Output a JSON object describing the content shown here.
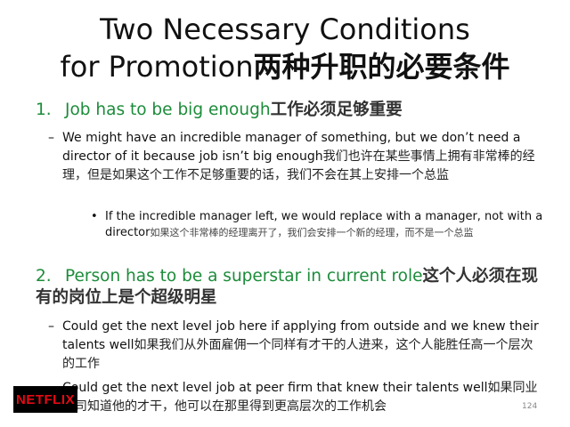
{
  "title": {
    "line1": "Two Necessary Conditions",
    "line2_en": "for Promotion",
    "line2_cn": "两种升职的必要条件"
  },
  "points": [
    {
      "number": "1.",
      "en": "Job has to be big enough",
      "cn": "工作必须足够重要",
      "subs": [
        {
          "marker": "–",
          "en": "We might have an incredible manager of something, but we don’t need a director of it because job isn’t big enough",
          "cn": "我们也许在某些事情上拥有非常棒的经理，但是如果这个工作不足够重要的话，我们不会在其上安排一个总监",
          "subs": [
            {
              "marker": "•",
              "en": "If the incredible manager left, we would replace with a manager, not with a director",
              "cn": "如果这个非常棒的经理离开了，我们会安排一个新的经理，而不是一个总监"
            }
          ]
        }
      ]
    },
    {
      "number": "2.",
      "en": "Person has to be a superstar in current role",
      "cn": "这个人必须在现有的岗位上是个超级明星",
      "subs": [
        {
          "marker": "–",
          "en": "Could get the next level job here if applying from outside and we knew their talents well",
          "cn": "如果我们从外面雇佣一个同样有才干的人进来，这个人能胜任高一个层次的工作"
        },
        {
          "marker": "–",
          "en": "Could get the next level job at peer firm that knew their talents well",
          "cn": "如果同业公司知道他的才干，他可以在那里得到更高层次的工作机会"
        }
      ]
    }
  ],
  "logo": {
    "text": "NETFLIX",
    "color": "#e50914"
  },
  "page_number": "124"
}
